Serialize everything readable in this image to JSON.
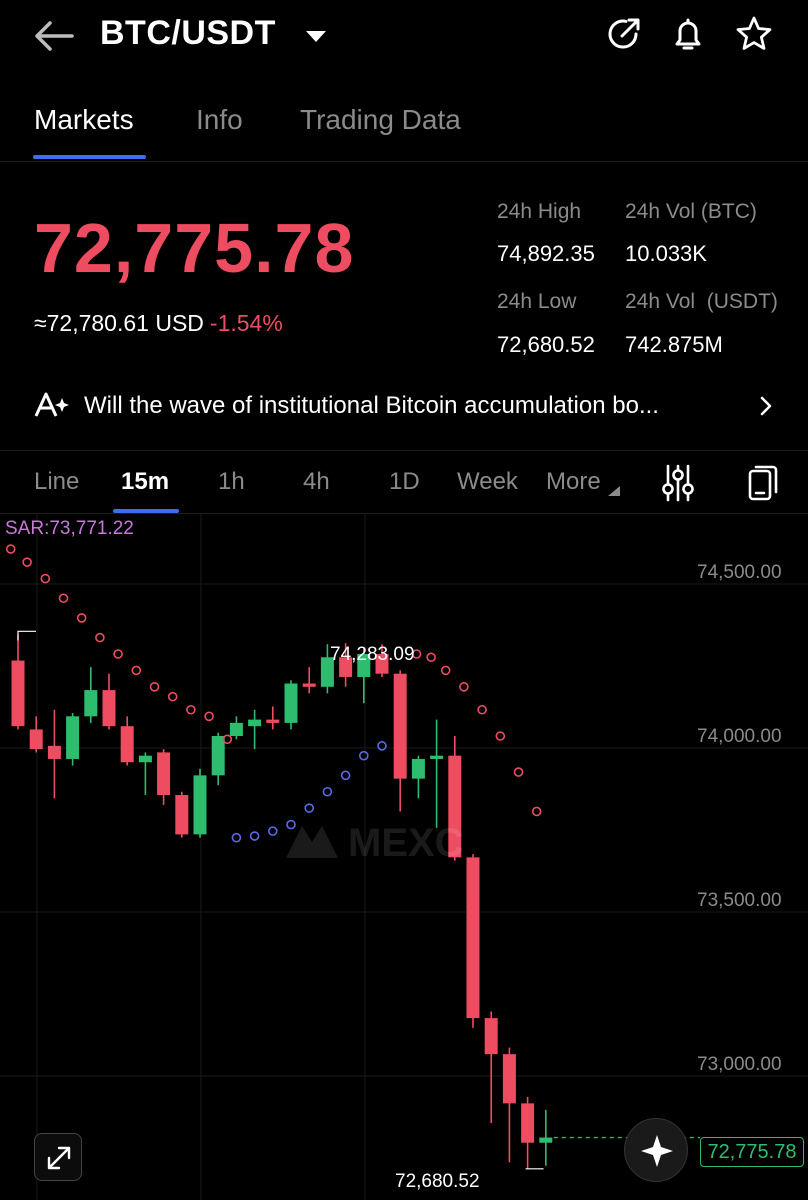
{
  "header": {
    "pair": "BTC/USDT",
    "icons": [
      "back-arrow-icon",
      "caret-down-icon",
      "share-icon",
      "bell-icon",
      "star-icon"
    ]
  },
  "tabs": [
    {
      "label": "Markets",
      "active": true
    },
    {
      "label": "Info",
      "active": false
    },
    {
      "label": "Trading Data",
      "active": false
    }
  ],
  "ticker": {
    "last_price": "72,775.78",
    "usd_equiv": "≈72,780.61 USD",
    "change_pct": "-1.54%",
    "stats": [
      {
        "label": "24h High",
        "value": "74,892.35"
      },
      {
        "label": "24h Vol (BTC)",
        "value": "10.033K"
      },
      {
        "label": "24h Low",
        "value": "72,680.52"
      },
      {
        "label": "24h Vol  (USDT)",
        "value": "742.875M"
      }
    ]
  },
  "news": {
    "text": "Will the wave of institutional Bitcoin accumulation bo..."
  },
  "timeframes": [
    {
      "label": "Line",
      "active": false
    },
    {
      "label": "15m",
      "active": true
    },
    {
      "label": "1h",
      "active": false
    },
    {
      "label": "4h",
      "active": false
    },
    {
      "label": "1D",
      "active": false
    },
    {
      "label": "Week",
      "active": false
    },
    {
      "label": "More",
      "active": false
    }
  ],
  "chart_data": {
    "type": "candlestick",
    "indicator_label": "SAR:73,771.22",
    "y_ticks": [
      "74,500.00",
      "74,000.00",
      "73,500.00",
      "73,000.00"
    ],
    "ylim": [
      72600,
      74700
    ],
    "max_label": "74,283.09",
    "min_label": "72,680.52",
    "last_price_label": "72,775.78",
    "colors": {
      "up": "#2ebd6f",
      "down": "#ee4c61",
      "sar_above": "#ee4c61",
      "sar_below": "#5a6ae6"
    },
    "candles": [
      {
        "o": 74230,
        "h": 74310,
        "l": 74020,
        "c": 74030
      },
      {
        "o": 74020,
        "h": 74060,
        "l": 73950,
        "c": 73960
      },
      {
        "o": 73970,
        "h": 74080,
        "l": 73810,
        "c": 73930
      },
      {
        "o": 73930,
        "h": 74070,
        "l": 73910,
        "c": 74060
      },
      {
        "o": 74060,
        "h": 74210,
        "l": 74040,
        "c": 74140
      },
      {
        "o": 74140,
        "h": 74190,
        "l": 74020,
        "c": 74030
      },
      {
        "o": 74030,
        "h": 74060,
        "l": 73910,
        "c": 73920
      },
      {
        "o": 73920,
        "h": 73950,
        "l": 73820,
        "c": 73940
      },
      {
        "o": 73950,
        "h": 73960,
        "l": 73790,
        "c": 73820
      },
      {
        "o": 73820,
        "h": 73830,
        "l": 73690,
        "c": 73700
      },
      {
        "o": 73700,
        "h": 73900,
        "l": 73690,
        "c": 73880
      },
      {
        "o": 73880,
        "h": 74010,
        "l": 73850,
        "c": 74000
      },
      {
        "o": 74000,
        "h": 74060,
        "l": 73990,
        "c": 74040
      },
      {
        "o": 74030,
        "h": 74080,
        "l": 73960,
        "c": 74050
      },
      {
        "o": 74050,
        "h": 74090,
        "l": 74020,
        "c": 74040
      },
      {
        "o": 74040,
        "h": 74170,
        "l": 74020,
        "c": 74160
      },
      {
        "o": 74160,
        "h": 74210,
        "l": 74130,
        "c": 74150
      },
      {
        "o": 74150,
        "h": 74280,
        "l": 74130,
        "c": 74240
      },
      {
        "o": 74240,
        "h": 74283.09,
        "l": 74150,
        "c": 74180
      },
      {
        "o": 74180,
        "h": 74270,
        "l": 74100,
        "c": 74250
      },
      {
        "o": 74250,
        "h": 74280,
        "l": 74180,
        "c": 74190
      },
      {
        "o": 74190,
        "h": 74200,
        "l": 73770,
        "c": 73870
      },
      {
        "o": 73870,
        "h": 73940,
        "l": 73810,
        "c": 73930
      },
      {
        "o": 73930,
        "h": 74050,
        "l": 73720,
        "c": 73940
      },
      {
        "o": 73940,
        "h": 74000,
        "l": 73620,
        "c": 73630
      },
      {
        "o": 73630,
        "h": 73640,
        "l": 73110,
        "c": 73140
      },
      {
        "o": 73140,
        "h": 73160,
        "l": 72820,
        "c": 73030
      },
      {
        "o": 73030,
        "h": 73050,
        "l": 72700,
        "c": 72880
      },
      {
        "o": 72880,
        "h": 72900,
        "l": 72680.52,
        "c": 72760
      },
      {
        "o": 72760,
        "h": 72860,
        "l": 72690,
        "c": 72775.78
      }
    ],
    "sar_points": [
      {
        "i": -0.4,
        "v": 74570,
        "side": "above"
      },
      {
        "i": 0.5,
        "v": 74530,
        "side": "above"
      },
      {
        "i": 1.5,
        "v": 74480,
        "side": "above"
      },
      {
        "i": 2.5,
        "v": 74420,
        "side": "above"
      },
      {
        "i": 3.5,
        "v": 74360,
        "side": "above"
      },
      {
        "i": 4.5,
        "v": 74300,
        "side": "above"
      },
      {
        "i": 5.5,
        "v": 74250,
        "side": "above"
      },
      {
        "i": 6.5,
        "v": 74200,
        "side": "above"
      },
      {
        "i": 7.5,
        "v": 74150,
        "side": "above"
      },
      {
        "i": 8.5,
        "v": 74120,
        "side": "above"
      },
      {
        "i": 9.5,
        "v": 74080,
        "side": "above"
      },
      {
        "i": 10.5,
        "v": 74060,
        "side": "above"
      },
      {
        "i": 11.5,
        "v": 73990,
        "side": "above"
      },
      {
        "i": 12.0,
        "v": 73690,
        "side": "below"
      },
      {
        "i": 13.0,
        "v": 73695,
        "side": "below"
      },
      {
        "i": 14.0,
        "v": 73710,
        "side": "below"
      },
      {
        "i": 15.0,
        "v": 73730,
        "side": "below"
      },
      {
        "i": 16.0,
        "v": 73780,
        "side": "below"
      },
      {
        "i": 17.0,
        "v": 73830,
        "side": "below"
      },
      {
        "i": 18.0,
        "v": 73880,
        "side": "below"
      },
      {
        "i": 19.0,
        "v": 73940,
        "side": "below"
      },
      {
        "i": 20.0,
        "v": 73970,
        "side": "below"
      },
      {
        "i": 21.9,
        "v": 74250,
        "side": "above"
      },
      {
        "i": 22.7,
        "v": 74240,
        "side": "above"
      },
      {
        "i": 23.5,
        "v": 74200,
        "side": "above"
      },
      {
        "i": 24.5,
        "v": 74150,
        "side": "above"
      },
      {
        "i": 25.5,
        "v": 74080,
        "side": "above"
      },
      {
        "i": 26.5,
        "v": 74000,
        "side": "above"
      },
      {
        "i": 27.5,
        "v": 73890,
        "side": "above"
      },
      {
        "i": 28.5,
        "v": 73770,
        "side": "above"
      }
    ]
  }
}
